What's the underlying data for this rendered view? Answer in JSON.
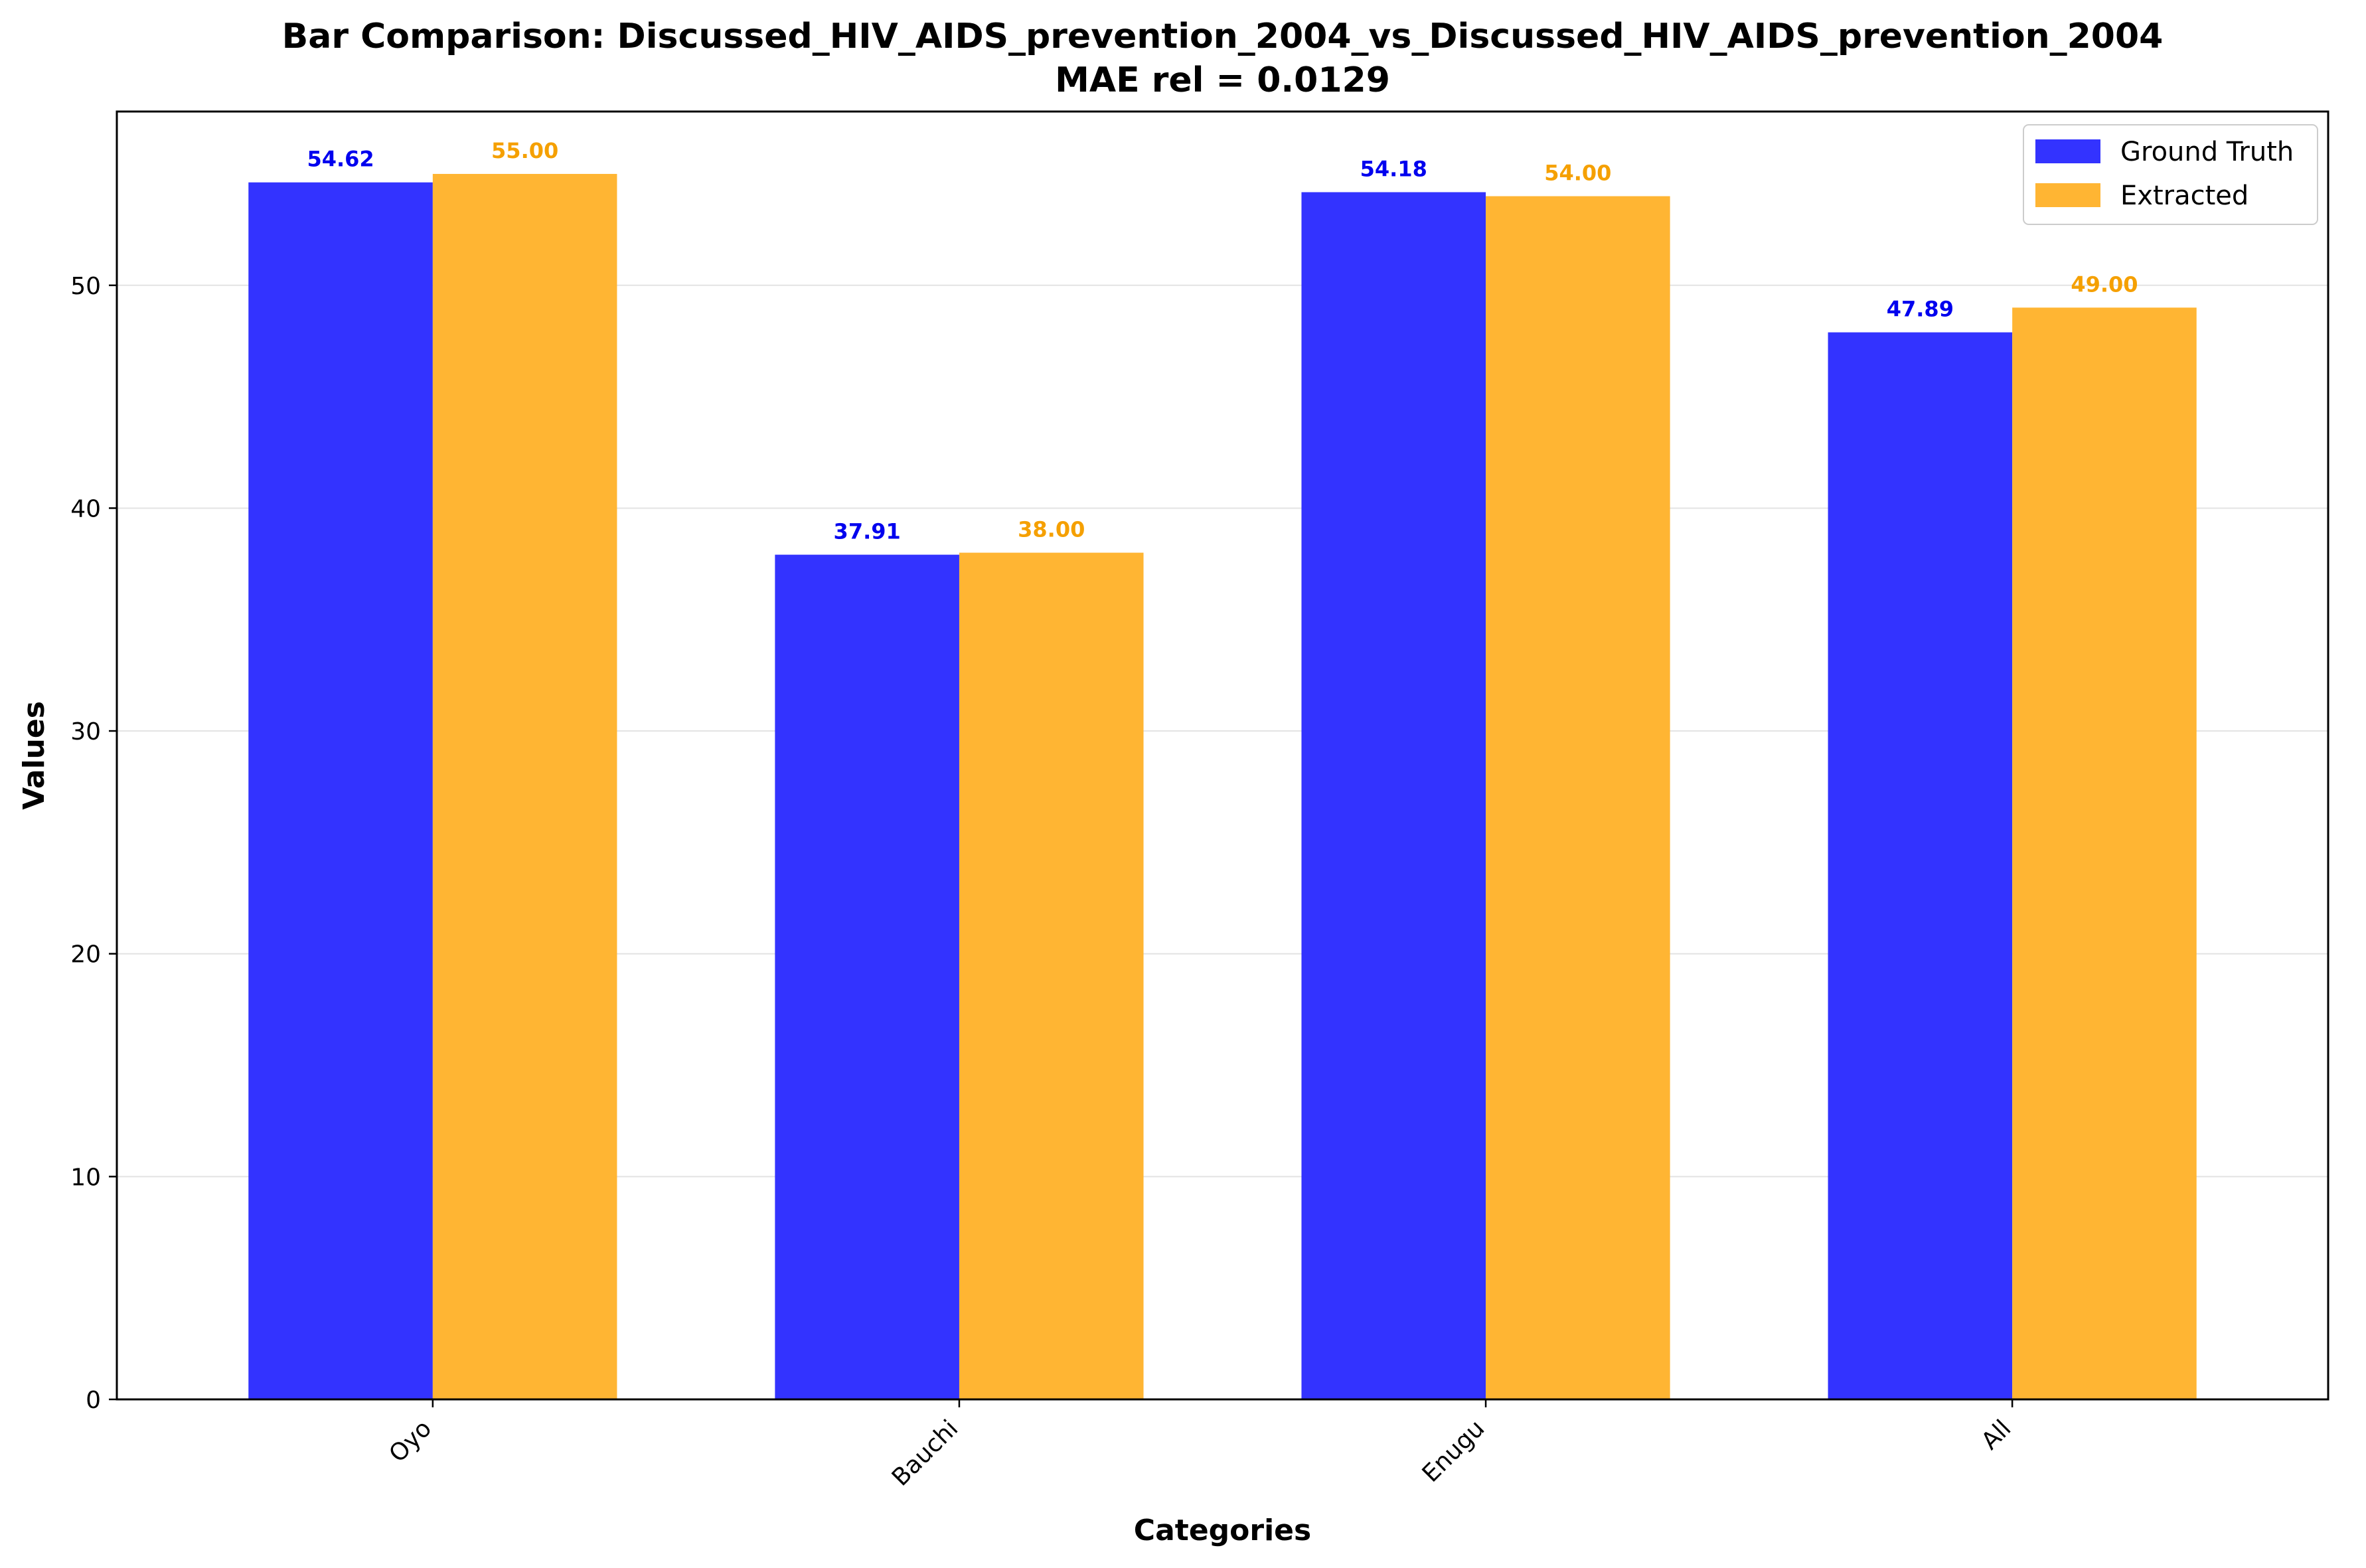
{
  "chart_data": {
    "type": "bar",
    "title": "Bar Comparison: Discussed_HIV_AIDS_prevention_2004_vs_Discussed_HIV_AIDS_prevention_2004",
    "subtitle": "MAE rel = 0.0129",
    "xlabel": "Categories",
    "ylabel": "Values",
    "categories": [
      "Oyo",
      "Bauchi",
      "Enugu",
      "All"
    ],
    "series": [
      {
        "name": "Ground Truth",
        "color": "#3333ff",
        "label_color": "#0000ee",
        "values": [
          54.62,
          37.91,
          54.18,
          47.89
        ],
        "labels": [
          "54.62",
          "37.91",
          "54.18",
          "47.89"
        ]
      },
      {
        "name": "Extracted",
        "color": "#ffb533",
        "label_color": "#f5a000",
        "values": [
          55.0,
          38.0,
          54.0,
          49.0
        ],
        "labels": [
          "55.00",
          "38.00",
          "54.00",
          "49.00"
        ]
      }
    ],
    "ylim": [
      0,
      57.8
    ],
    "yticks": [
      0,
      10,
      20,
      30,
      40,
      50
    ],
    "ytick_labels": [
      "0",
      "10",
      "20",
      "30",
      "40",
      "50"
    ],
    "grid": "y",
    "legend": "top-right"
  }
}
